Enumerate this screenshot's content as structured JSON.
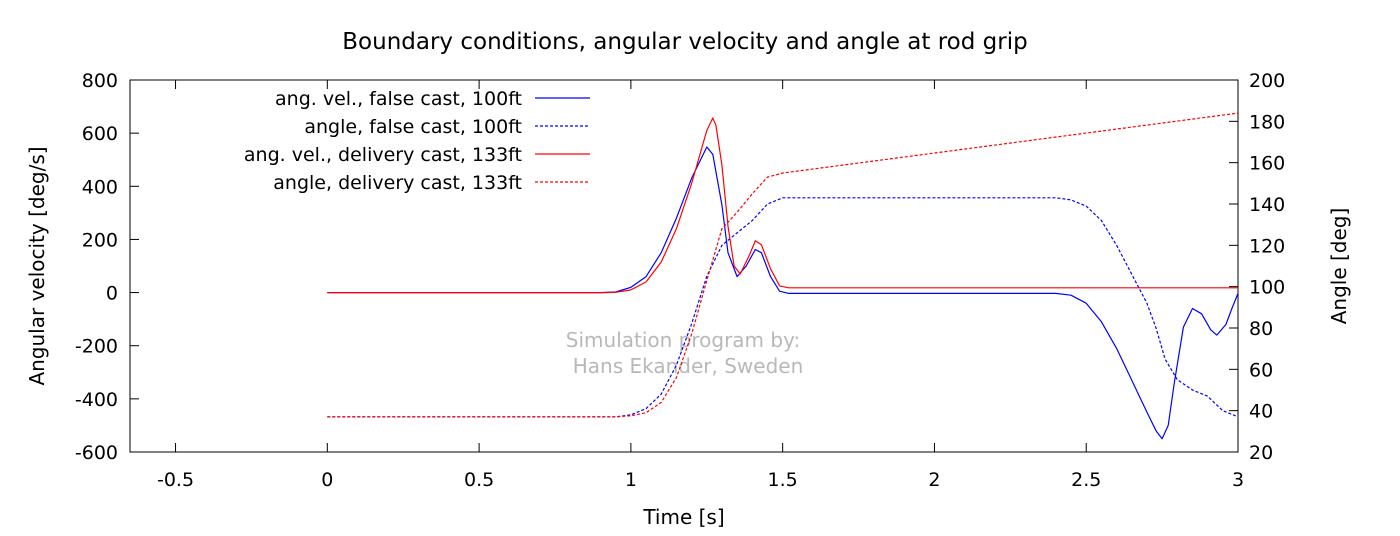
{
  "chart_data": {
    "type": "line",
    "title": "Boundary conditions, angular velocity and angle at rod grip",
    "xlabel": "Time [s]",
    "ylabel": "Angular velocity [deg/s]",
    "y2label": "Angle [deg]",
    "xlim": [
      -0.65,
      3
    ],
    "ylim": [
      -600,
      800
    ],
    "y2lim": [
      20,
      200
    ],
    "xticks": [
      "-0.5",
      "0",
      "0.5",
      "1",
      "1.5",
      "2",
      "2.5",
      "3"
    ],
    "yticks": [
      "-600",
      "-400",
      "-200",
      "0",
      "200",
      "400",
      "600",
      "800"
    ],
    "y2ticks": [
      "20",
      "40",
      "60",
      "80",
      "100",
      "120",
      "140",
      "160",
      "180",
      "200"
    ],
    "grid": false,
    "legend_position": "top-left",
    "watermark": [
      "Simulation program by:",
      "Hans Ekander, Sweden"
    ],
    "series": [
      {
        "name": "ang. vel., false cast, 100ft",
        "axis": "left",
        "color": "#0000ff",
        "dash": "solid",
        "points": [
          [
            0,
            0
          ],
          [
            0.9,
            0
          ],
          [
            0.95,
            2
          ],
          [
            1.0,
            20
          ],
          [
            1.05,
            60
          ],
          [
            1.1,
            150
          ],
          [
            1.15,
            280
          ],
          [
            1.2,
            430
          ],
          [
            1.25,
            548
          ],
          [
            1.27,
            520
          ],
          [
            1.3,
            330
          ],
          [
            1.32,
            150
          ],
          [
            1.35,
            60
          ],
          [
            1.38,
            100
          ],
          [
            1.41,
            162
          ],
          [
            1.43,
            150
          ],
          [
            1.46,
            60
          ],
          [
            1.49,
            5
          ],
          [
            1.52,
            -3
          ],
          [
            2.4,
            -3
          ],
          [
            2.45,
            -10
          ],
          [
            2.5,
            -40
          ],
          [
            2.55,
            -110
          ],
          [
            2.6,
            -210
          ],
          [
            2.65,
            -330
          ],
          [
            2.7,
            -450
          ],
          [
            2.73,
            -520
          ],
          [
            2.75,
            -550
          ],
          [
            2.77,
            -500
          ],
          [
            2.79,
            -340
          ],
          [
            2.82,
            -130
          ],
          [
            2.85,
            -60
          ],
          [
            2.88,
            -80
          ],
          [
            2.91,
            -140
          ],
          [
            2.93,
            -160
          ],
          [
            2.96,
            -120
          ],
          [
            2.98,
            -60
          ],
          [
            3.0,
            -3
          ]
        ]
      },
      {
        "name": "angle, false cast, 100ft",
        "axis": "right",
        "color": "#0000ff",
        "dash": "dashed",
        "points": [
          [
            0,
            37
          ],
          [
            0.95,
            37
          ],
          [
            1.0,
            38
          ],
          [
            1.05,
            41
          ],
          [
            1.1,
            48
          ],
          [
            1.15,
            62
          ],
          [
            1.2,
            82
          ],
          [
            1.25,
            105
          ],
          [
            1.3,
            120
          ],
          [
            1.35,
            126
          ],
          [
            1.4,
            132
          ],
          [
            1.45,
            140
          ],
          [
            1.5,
            143
          ],
          [
            2.4,
            143
          ],
          [
            2.45,
            142
          ],
          [
            2.5,
            139
          ],
          [
            2.55,
            132
          ],
          [
            2.6,
            120
          ],
          [
            2.65,
            106
          ],
          [
            2.7,
            92
          ],
          [
            2.73,
            80
          ],
          [
            2.76,
            65
          ],
          [
            2.8,
            55
          ],
          [
            2.85,
            50
          ],
          [
            2.9,
            47
          ],
          [
            2.95,
            40
          ],
          [
            3.0,
            37
          ]
        ]
      },
      {
        "name": "ang. vel., delivery cast, 133ft",
        "axis": "left",
        "color": "#ff0000",
        "dash": "solid",
        "points": [
          [
            0,
            0
          ],
          [
            0.9,
            0
          ],
          [
            0.95,
            1
          ],
          [
            1.0,
            10
          ],
          [
            1.05,
            40
          ],
          [
            1.1,
            115
          ],
          [
            1.15,
            240
          ],
          [
            1.2,
            410
          ],
          [
            1.25,
            610
          ],
          [
            1.27,
            657
          ],
          [
            1.28,
            630
          ],
          [
            1.3,
            480
          ],
          [
            1.32,
            250
          ],
          [
            1.34,
            100
          ],
          [
            1.36,
            70
          ],
          [
            1.39,
            140
          ],
          [
            1.41,
            195
          ],
          [
            1.43,
            180
          ],
          [
            1.46,
            90
          ],
          [
            1.49,
            25
          ],
          [
            1.52,
            18
          ],
          [
            3.0,
            18
          ]
        ]
      },
      {
        "name": "angle, delivery cast, 133ft",
        "axis": "right",
        "color": "#ff0000",
        "dash": "dashed",
        "points": [
          [
            0,
            37
          ],
          [
            0.95,
            37
          ],
          [
            1.0,
            37.5
          ],
          [
            1.05,
            39
          ],
          [
            1.1,
            44
          ],
          [
            1.15,
            56
          ],
          [
            1.2,
            77
          ],
          [
            1.25,
            103
          ],
          [
            1.3,
            128
          ],
          [
            1.35,
            136
          ],
          [
            1.4,
            145
          ],
          [
            1.45,
            153
          ],
          [
            1.5,
            155
          ],
          [
            3.0,
            184
          ]
        ]
      }
    ]
  }
}
